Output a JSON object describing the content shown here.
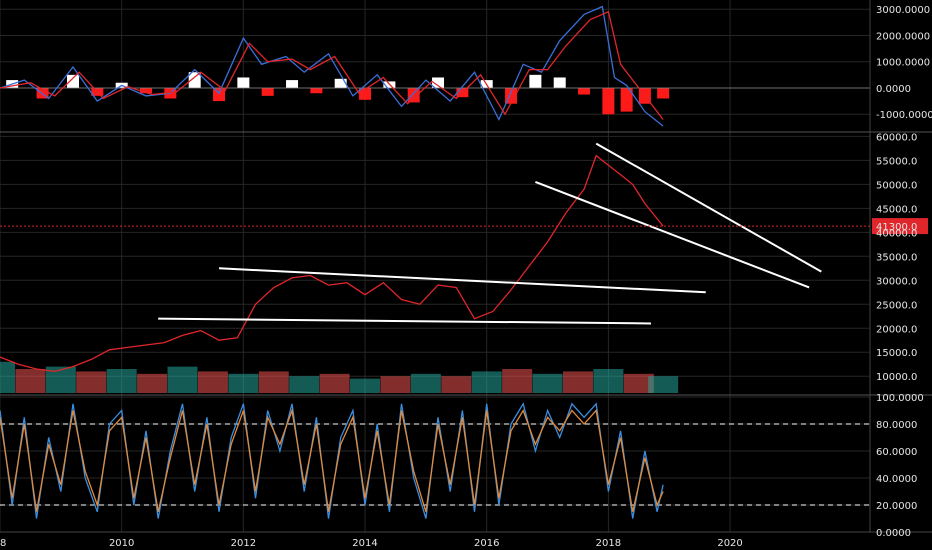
{
  "chart_data": [
    {
      "type": "line",
      "panel": "macd",
      "y_ticks": [
        "3000.0000",
        "2000.0000",
        "1000.0000",
        "0.0000",
        "-1000.0000"
      ],
      "y_values": [
        3000,
        2000,
        1000,
        0,
        -1000
      ],
      "ylim": [
        -1600,
        3350
      ],
      "series": [
        {
          "color": "#3a6fd8",
          "x": [
            2008.0,
            2008.4,
            2008.8,
            2009.2,
            2009.6,
            2010.0,
            2010.4,
            2010.8,
            2011.2,
            2011.6,
            2012.0,
            2012.3,
            2012.7,
            2013.0,
            2013.4,
            2013.8,
            2014.2,
            2014.6,
            2015.0,
            2015.4,
            2015.8,
            2016.2,
            2016.6,
            2016.9,
            2017.2,
            2017.6,
            2017.9,
            2018.1,
            2018.3,
            2018.6,
            2018.9
          ],
          "values": [
            0,
            300,
            -400,
            800,
            -500,
            100,
            -300,
            -200,
            700,
            -200,
            1900,
            900,
            1200,
            600,
            1300,
            -300,
            500,
            -700,
            300,
            -500,
            600,
            -1200,
            900,
            600,
            1800,
            2800,
            3100,
            400,
            100,
            -900,
            -1450
          ]
        },
        {
          "color": "#e0262b",
          "x": [
            2008.0,
            2008.5,
            2008.9,
            2009.3,
            2009.7,
            2010.1,
            2010.5,
            2010.9,
            2011.3,
            2011.7,
            2012.1,
            2012.4,
            2012.8,
            2013.1,
            2013.5,
            2013.9,
            2014.3,
            2014.7,
            2015.1,
            2015.5,
            2015.9,
            2016.3,
            2016.7,
            2017.0,
            2017.3,
            2017.7,
            2018.0,
            2018.2,
            2018.4,
            2018.7,
            2018.9
          ],
          "values": [
            0,
            200,
            -300,
            600,
            -400,
            50,
            -250,
            -150,
            600,
            -100,
            1700,
            1000,
            1100,
            700,
            1200,
            -200,
            400,
            -600,
            250,
            -400,
            500,
            -1000,
            700,
            700,
            1600,
            2600,
            2900,
            900,
            300,
            -600,
            -1200
          ]
        }
      ],
      "histogram": {
        "x": [
          2008.2,
          2008.7,
          2009.2,
          2009.6,
          2010.0,
          2010.4,
          2010.8,
          2011.2,
          2011.6,
          2012.0,
          2012.4,
          2012.8,
          2013.2,
          2013.6,
          2014.0,
          2014.4,
          2014.8,
          2015.2,
          2015.6,
          2016.0,
          2016.4,
          2016.8,
          2017.2,
          2017.6,
          2018.0,
          2018.3,
          2018.6,
          2018.9
        ],
        "values": [
          300,
          -400,
          500,
          -300,
          200,
          -200,
          -400,
          600,
          -500,
          400,
          -300,
          300,
          -200,
          350,
          -450,
          250,
          -550,
          400,
          -350,
          300,
          -600,
          500,
          400,
          -250,
          -1000,
          -900,
          -600,
          -400
        ]
      }
    },
    {
      "type": "line",
      "panel": "price",
      "y_ticks": [
        "60000.0",
        "55000.0",
        "50000.0",
        "45000.0",
        "40000.0",
        "35000.0",
        "30000.0",
        "25000.0",
        "20000.0",
        "15000.0",
        "10000.0"
      ],
      "y_values": [
        60000,
        55000,
        50000,
        45000,
        40000,
        35000,
        30000,
        25000,
        20000,
        15000,
        10000
      ],
      "ylim": [
        6500,
        60500
      ],
      "last_price": "41300.0",
      "last_value": 41300,
      "series": [
        {
          "color": "#e0262b",
          "x": [
            2008.0,
            2008.3,
            2008.6,
            2008.9,
            2009.2,
            2009.5,
            2009.8,
            2010.1,
            2010.4,
            2010.7,
            2011.0,
            2011.3,
            2011.6,
            2011.9,
            2012.2,
            2012.5,
            2012.8,
            2013.1,
            2013.4,
            2013.7,
            2014.0,
            2014.3,
            2014.6,
            2014.9,
            2015.2,
            2015.5,
            2015.8,
            2016.1,
            2016.4,
            2016.7,
            2017.0,
            2017.3,
            2017.6,
            2017.8,
            2018.0,
            2018.2,
            2018.4,
            2018.6,
            2018.9
          ],
          "values": [
            14000,
            12500,
            11500,
            11000,
            12000,
            13500,
            15500,
            16000,
            16500,
            17000,
            18500,
            19500,
            17500,
            18000,
            25000,
            28500,
            30500,
            31000,
            29000,
            29500,
            27000,
            29500,
            26000,
            25000,
            29000,
            28500,
            22000,
            23500,
            28000,
            33000,
            38000,
            44000,
            49000,
            56000,
            54000,
            52000,
            50000,
            46000,
            41300
          ]
        }
      ],
      "volume": {
        "x": [
          2008.0,
          2008.5,
          2009.0,
          2009.5,
          2010.0,
          2010.5,
          2011.0,
          2011.5,
          2012.0,
          2012.5,
          2013.0,
          2013.5,
          2014.0,
          2014.5,
          2015.0,
          2015.5,
          2016.0,
          2016.5,
          2017.0,
          2017.5,
          2018.0,
          2018.5,
          2018.9
        ],
        "values": [
          13000,
          11500,
          12000,
          11000,
          11500,
          10500,
          12000,
          11000,
          10500,
          11000,
          10000,
          10500,
          9500,
          10000,
          10500,
          10000,
          11000,
          11500,
          10500,
          11000,
          11500,
          10500,
          10000
        ]
      },
      "trendlines": [
        {
          "x": [
            2010.6,
            2018.7
          ],
          "y": [
            22000,
            21000
          ]
        },
        {
          "x": [
            2011.6,
            2019.6
          ],
          "y": [
            32500,
            27500
          ]
        },
        {
          "x": [
            2016.8,
            2021.3
          ],
          "y": [
            50500,
            28500
          ]
        },
        {
          "x": [
            2017.8,
            2021.5
          ],
          "y": [
            58500,
            31800
          ]
        }
      ]
    },
    {
      "type": "line",
      "panel": "stochastic",
      "y_ticks": [
        "100.0000",
        "80.0000",
        "60.0000",
        "40.0000",
        "20.0000",
        "0.0000"
      ],
      "y_values": [
        100,
        80,
        60,
        40,
        20,
        0
      ],
      "ylim": [
        0,
        100
      ],
      "bands": [
        80,
        20
      ],
      "series": [
        {
          "color": "#3a8fe0",
          "x": [
            2008.0,
            2008.2,
            2008.4,
            2008.6,
            2008.8,
            2009.0,
            2009.2,
            2009.4,
            2009.6,
            2009.8,
            2010.0,
            2010.2,
            2010.4,
            2010.6,
            2010.8,
            2011.0,
            2011.2,
            2011.4,
            2011.6,
            2011.8,
            2012.0,
            2012.2,
            2012.4,
            2012.6,
            2012.8,
            2013.0,
            2013.2,
            2013.4,
            2013.6,
            2013.8,
            2014.0,
            2014.2,
            2014.4,
            2014.6,
            2014.8,
            2015.0,
            2015.2,
            2015.4,
            2015.6,
            2015.8,
            2016.0,
            2016.2,
            2016.4,
            2016.6,
            2016.8,
            2017.0,
            2017.2,
            2017.4,
            2017.6,
            2017.8,
            2018.0,
            2018.2,
            2018.4,
            2018.6,
            2018.8,
            2018.9
          ],
          "values": [
            90,
            20,
            85,
            10,
            70,
            30,
            95,
            40,
            15,
            80,
            90,
            20,
            75,
            10,
            60,
            95,
            30,
            85,
            15,
            70,
            95,
            25,
            90,
            60,
            95,
            30,
            85,
            10,
            70,
            90,
            20,
            80,
            15,
            95,
            40,
            10,
            85,
            30,
            90,
            15,
            95,
            20,
            80,
            95,
            60,
            90,
            70,
            95,
            85,
            95,
            30,
            75,
            10,
            60,
            15,
            35
          ]
        },
        {
          "color": "#e08a3a",
          "x": [
            2008.0,
            2008.2,
            2008.4,
            2008.6,
            2008.8,
            2009.0,
            2009.2,
            2009.4,
            2009.6,
            2009.8,
            2010.0,
            2010.2,
            2010.4,
            2010.6,
            2010.8,
            2011.0,
            2011.2,
            2011.4,
            2011.6,
            2011.8,
            2012.0,
            2012.2,
            2012.4,
            2012.6,
            2012.8,
            2013.0,
            2013.2,
            2013.4,
            2013.6,
            2013.8,
            2014.0,
            2014.2,
            2014.4,
            2014.6,
            2014.8,
            2015.0,
            2015.2,
            2015.4,
            2015.6,
            2015.8,
            2016.0,
            2016.2,
            2016.4,
            2016.6,
            2016.8,
            2017.0,
            2017.2,
            2017.4,
            2017.6,
            2017.8,
            2018.0,
            2018.2,
            2018.4,
            2018.6,
            2018.8,
            2018.9
          ],
          "values": [
            85,
            25,
            80,
            15,
            65,
            35,
            90,
            45,
            20,
            75,
            85,
            25,
            70,
            15,
            55,
            90,
            35,
            80,
            20,
            65,
            90,
            30,
            85,
            65,
            90,
            35,
            80,
            15,
            65,
            85,
            25,
            75,
            20,
            90,
            45,
            15,
            80,
            35,
            85,
            20,
            90,
            25,
            75,
            90,
            65,
            85,
            75,
            90,
            80,
            90,
            35,
            70,
            15,
            55,
            20,
            30
          ]
        }
      ]
    }
  ],
  "x_axis": {
    "ticks": [
      "08",
      "2010",
      "2012",
      "2014",
      "2016",
      "2018",
      "2020"
    ],
    "tick_values": [
      2008,
      2010,
      2012,
      2014,
      2016,
      2018,
      2020
    ],
    "xlim": [
      2008.0,
      2022.3
    ]
  },
  "colors": {
    "background": "#000000",
    "grid": "#262626",
    "up": "#26a69a",
    "down": "#ef5350",
    "trendline": "#ffffff",
    "bollinger": "#2e7d32",
    "price_label_bg": "#e0262b"
  }
}
